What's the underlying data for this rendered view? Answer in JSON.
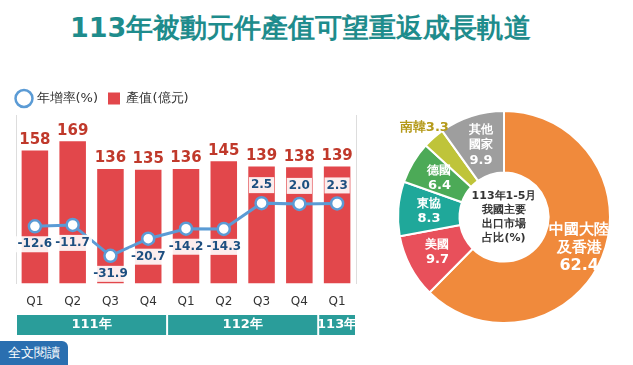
{
  "title": "113年被動元件產值可望重返成長軌道",
  "link_text": "全文閱讀",
  "chart_data": [
    {
      "type": "bar",
      "categories": [
        "Q1",
        "Q2",
        "Q3",
        "Q4",
        "Q1",
        "Q2",
        "Q3",
        "Q4",
        "Q1"
      ],
      "x_groups": [
        "111年",
        "111年",
        "111年",
        "111年",
        "112年",
        "112年",
        "112年",
        "112年",
        "113年"
      ],
      "series": [
        {
          "name": "產值(億元)",
          "type": "bar",
          "color": "#e2474b",
          "values": [
            158,
            169,
            136,
            135,
            136,
            145,
            139,
            138,
            139
          ]
        },
        {
          "name": "年增率(%)",
          "type": "line",
          "axis": "y2",
          "color": "#5b9bd5",
          "marker": "circle",
          "values": [
            -12.6,
            -11.7,
            -31.9,
            -20.7,
            -14.2,
            -14.3,
            2.5,
            2.0,
            2.3
          ],
          "value_labels": [
            "-12.6",
            "-11.7",
            "-31.9",
            "-20.7",
            "-14.2",
            "-14.3",
            "2.5",
            "2.0",
            "2.3"
          ]
        }
      ],
      "ylim": [
        0,
        200
      ],
      "y2lim": [
        -50,
        60
      ],
      "grid": false,
      "legend": "top-left",
      "data_labels": true,
      "tick_labels": "x"
    },
    {
      "type": "doughnut",
      "center_text": [
        "113年1-5月",
        "我國主要",
        "出口市場",
        "占比(%)"
      ],
      "categories": [
        "中國大陸及香港",
        "美國",
        "東協",
        "德國",
        "南韓",
        "其他國家"
      ],
      "values": [
        62.4,
        9.7,
        8.3,
        6.4,
        3.3,
        9.9
      ],
      "colors": [
        "#f08a3c",
        "#e8505b",
        "#1fa89a",
        "#4caa57",
        "#bfc43a",
        "#9e9e9e"
      ],
      "data_labels": true
    }
  ]
}
